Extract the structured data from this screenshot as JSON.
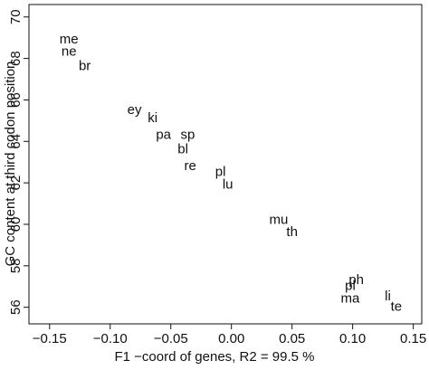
{
  "chart_data": {
    "type": "scatter",
    "xlabel": "F1 −coord of genes, R2 = 99.5 %",
    "ylabel": "GC content at third codon position",
    "xlim": [
      -0.167,
      0.157
    ],
    "ylim": [
      55.2,
      70.6
    ],
    "xticks": [
      {
        "value": -0.15,
        "label": "−0.15"
      },
      {
        "value": -0.1,
        "label": "−0.10"
      },
      {
        "value": -0.05,
        "label": "−0.05"
      },
      {
        "value": 0,
        "label": "0.00"
      },
      {
        "value": 0.05,
        "label": "0.05"
      },
      {
        "value": 0.1,
        "label": "0.10"
      },
      {
        "value": 0.15,
        "label": "0.15"
      }
    ],
    "yticks": [
      56,
      58,
      60,
      62,
      64,
      66,
      68,
      70
    ],
    "series": [
      {
        "color": "#111111",
        "labels": [
          "me",
          "ne",
          "br",
          "ey",
          "ki",
          "pa",
          "sp",
          "bl",
          "re",
          "pl",
          "lu",
          "mu",
          "th",
          "ph",
          "pl",
          "ma",
          "li",
          "te"
        ],
        "x": [
          -0.134,
          -0.134,
          -0.121,
          -0.08,
          -0.065,
          -0.056,
          -0.036,
          -0.04,
          -0.034,
          -0.009,
          -0.003,
          0.039,
          0.05,
          0.103,
          0.098,
          0.098,
          0.129,
          0.136
        ],
        "values": [
          68.9,
          68.3,
          67.6,
          65.5,
          65.1,
          64.3,
          64.3,
          63.6,
          62.8,
          62.5,
          61.9,
          60.2,
          59.6,
          57.3,
          57.0,
          56.4,
          56.5,
          56.0
        ]
      }
    ]
  }
}
